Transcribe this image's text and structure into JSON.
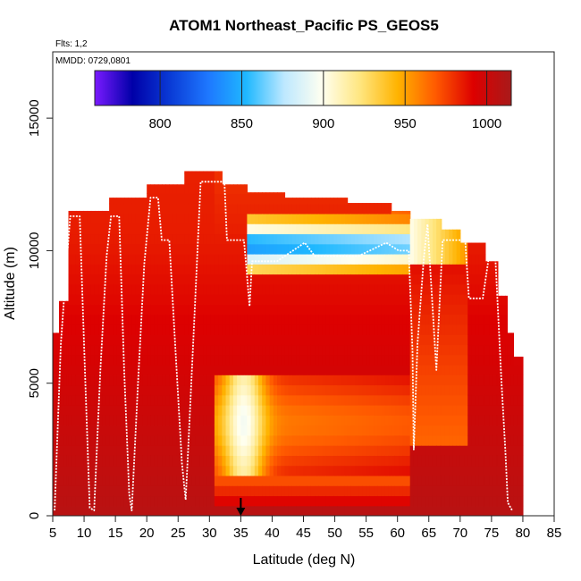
{
  "chart_data": {
    "type": "heatmap",
    "title": "ATOM1 Northeast_Pacific PS_GEOS5",
    "flights_label": "Flts: 1,2",
    "dates_label": "MMDD: 0729,0801",
    "xlabel": "Latitude (deg N)",
    "ylabel": "Altitude (m)",
    "xlim": [
      5,
      85
    ],
    "ylim": [
      0,
      17500
    ],
    "x_ticks": [
      "5",
      "10",
      "15",
      "20",
      "25",
      "30",
      "35",
      "40",
      "45",
      "50",
      "55",
      "60",
      "65",
      "70",
      "75",
      "80",
      "85"
    ],
    "y_ticks": [
      "0",
      "5000",
      "10000",
      "15000"
    ],
    "colorbar": {
      "range": [
        760,
        1015
      ],
      "ticks": [
        "800",
        "850",
        "900",
        "950",
        "1000"
      ],
      "colors": [
        "#7a1aff",
        "#0000a8",
        "#0a3bd6",
        "#1e78ff",
        "#1fb8ff",
        "#bde8ff",
        "#fffff0",
        "#ffe680",
        "#ffb300",
        "#ff5a00",
        "#dd0000",
        "#a81a1a"
      ]
    },
    "marker": {
      "x": 35,
      "label": "arrow-down"
    },
    "column_tops": [
      {
        "x0": 5,
        "x1": 6,
        "top": 6900
      },
      {
        "x0": 6,
        "x1": 7.5,
        "top": 8100
      },
      {
        "x0": 7.5,
        "x1": 14,
        "top": 11500
      },
      {
        "x0": 14,
        "x1": 20,
        "top": 12000
      },
      {
        "x0": 20,
        "x1": 26,
        "top": 12500
      },
      {
        "x0": 26,
        "x1": 32,
        "top": 13000
      },
      {
        "x0": 32,
        "x1": 36,
        "top": 12500
      },
      {
        "x0": 36,
        "x1": 42,
        "top": 12200
      },
      {
        "x0": 42,
        "x1": 52,
        "top": 12000
      },
      {
        "x0": 52,
        "x1": 59,
        "top": 11800
      },
      {
        "x0": 59,
        "x1": 62,
        "top": 11500
      },
      {
        "x0": 62,
        "x1": 67,
        "top": 11200
      },
      {
        "x0": 67,
        "x1": 70,
        "top": 10800
      },
      {
        "x0": 70,
        "x1": 74,
        "top": 10300
      },
      {
        "x0": 74,
        "x1": 76,
        "top": 9600
      },
      {
        "x0": 76,
        "x1": 77.5,
        "top": 8300
      },
      {
        "x0": 77.5,
        "x1": 78.5,
        "top": 6900
      },
      {
        "x0": 78.5,
        "x1": 80,
        "top": 6000
      }
    ],
    "flight_track": [
      [
        5.3,
        200
      ],
      [
        6.3,
        6500
      ],
      [
        7.2,
        9500
      ],
      [
        7.8,
        11300
      ],
      [
        9.3,
        11300
      ],
      [
        10.2,
        5000
      ],
      [
        10.9,
        300
      ],
      [
        11.6,
        200
      ],
      [
        12.6,
        5500
      ],
      [
        13.6,
        9800
      ],
      [
        14.3,
        11300
      ],
      [
        15.6,
        11300
      ],
      [
        16.4,
        5500
      ],
      [
        17.2,
        800
      ],
      [
        17.6,
        200
      ],
      [
        18.6,
        5000
      ],
      [
        19.6,
        9500
      ],
      [
        20.6,
        12000
      ],
      [
        21.8,
        12000
      ],
      [
        22.4,
        10400
      ],
      [
        23.6,
        10400
      ],
      [
        24.6,
        6200
      ],
      [
        25.6,
        2000
      ],
      [
        26.2,
        600
      ],
      [
        26.6,
        2500
      ],
      [
        27.6,
        7500
      ],
      [
        28.6,
        12600
      ],
      [
        32.4,
        12600
      ],
      [
        32.8,
        10400
      ],
      [
        35.5,
        10400
      ],
      [
        35.8,
        9600
      ],
      [
        36.4,
        7900
      ],
      [
        36.8,
        9600
      ],
      [
        40.8,
        9600
      ],
      [
        45.2,
        10300
      ],
      [
        46.8,
        9800
      ],
      [
        53.8,
        9800
      ],
      [
        58.2,
        10300
      ],
      [
        60.2,
        10000
      ],
      [
        61.8,
        10000
      ],
      [
        62.4,
        6200
      ],
      [
        62.6,
        2500
      ],
      [
        63.2,
        6500
      ],
      [
        64.2,
        9700
      ],
      [
        64.8,
        11000
      ],
      [
        66.2,
        5500
      ],
      [
        67.2,
        10400
      ],
      [
        70.8,
        10400
      ],
      [
        71.4,
        8200
      ],
      [
        73.6,
        8200
      ],
      [
        74.6,
        9800
      ],
      [
        75.6,
        9800
      ],
      [
        76.6,
        5000
      ],
      [
        77.2,
        2500
      ],
      [
        77.6,
        500
      ],
      [
        78.3,
        200
      ]
    ]
  }
}
